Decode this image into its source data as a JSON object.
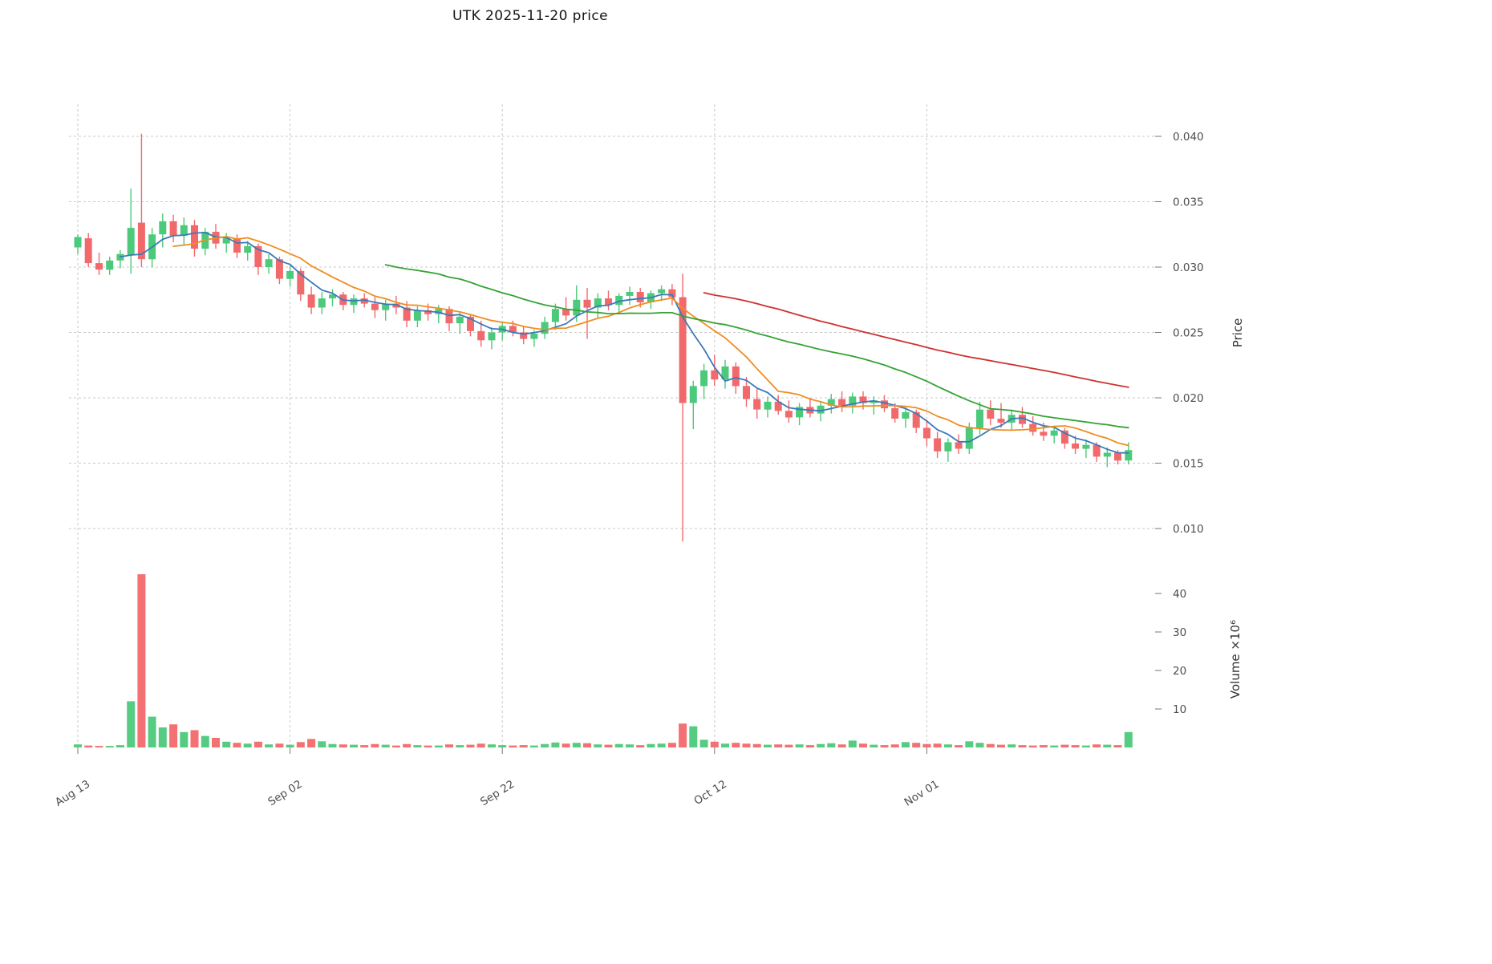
{
  "title": "UTK  2025-11-20  price",
  "chart_data": {
    "type": "candlestick+volume",
    "title": "UTK  2025-11-20  price",
    "ylabel": "Price",
    "ylabel_volume": "Volume  ×10⁶",
    "volume_units": "10^6",
    "grid": true,
    "legend": false,
    "ylim_price": [
      0.007,
      0.0425
    ],
    "ylim_volume": [
      0,
      47
    ],
    "price_ticks": [
      0.01,
      0.015,
      0.02,
      0.025,
      0.03,
      0.035,
      0.04
    ],
    "volume_ticks": [
      10,
      20,
      30,
      40
    ],
    "x_ticks": [
      {
        "index": 0,
        "label": "Aug 13"
      },
      {
        "index": 20,
        "label": "Sep 02"
      },
      {
        "index": 40,
        "label": "Sep 22"
      },
      {
        "index": 60,
        "label": "Oct 12"
      },
      {
        "index": 80,
        "label": "Nov 01"
      }
    ],
    "colors": {
      "up": "#4dc97b",
      "down": "#f2696c",
      "grid": "#c9c9c9",
      "axis_text": "#4d4d4d"
    },
    "moving_averages": [
      {
        "label": "MA5",
        "period": 5,
        "color": "#3b79b8"
      },
      {
        "label": "MA10",
        "period": 10,
        "color": "#ef8d20"
      },
      {
        "label": "MA30",
        "period": 30,
        "color": "#35a335"
      },
      {
        "label": "MA60",
        "period": 60,
        "color": "#d03030"
      }
    ],
    "ohlcv_columns": [
      "date",
      "open",
      "high",
      "low",
      "close",
      "volume_millions"
    ],
    "ohlcv": [
      [
        "2025-08-13",
        0.0315,
        0.0325,
        0.031,
        0.0323,
        0.8
      ],
      [
        "2025-08-14",
        0.0322,
        0.0326,
        0.03,
        0.0303,
        0.5
      ],
      [
        "2025-08-15",
        0.0303,
        0.0311,
        0.0294,
        0.0298,
        0.4
      ],
      [
        "2025-08-16",
        0.0298,
        0.0308,
        0.0294,
        0.0305,
        0.4
      ],
      [
        "2025-08-17",
        0.0305,
        0.0313,
        0.0299,
        0.031,
        0.6
      ],
      [
        "2025-08-18",
        0.0309,
        0.036,
        0.0295,
        0.033,
        12.0
      ],
      [
        "2025-08-19",
        0.0334,
        0.0402,
        0.03,
        0.0306,
        45.0
      ],
      [
        "2025-08-20",
        0.0306,
        0.033,
        0.03,
        0.0325,
        8.0
      ],
      [
        "2025-08-21",
        0.0325,
        0.0341,
        0.0315,
        0.0335,
        5.2
      ],
      [
        "2025-08-22",
        0.0335,
        0.034,
        0.0319,
        0.0324,
        6.0
      ],
      [
        "2025-08-23",
        0.0324,
        0.0338,
        0.0317,
        0.0332,
        4.0
      ],
      [
        "2025-08-24",
        0.0332,
        0.0336,
        0.0308,
        0.0314,
        4.5
      ],
      [
        "2025-08-25",
        0.0314,
        0.033,
        0.0309,
        0.0327,
        3.0
      ],
      [
        "2025-08-26",
        0.0327,
        0.0333,
        0.0314,
        0.0318,
        2.5
      ],
      [
        "2025-08-27",
        0.0318,
        0.0326,
        0.0311,
        0.0322,
        1.5
      ],
      [
        "2025-08-28",
        0.0322,
        0.0325,
        0.0307,
        0.0311,
        1.2
      ],
      [
        "2025-08-29",
        0.0311,
        0.032,
        0.0305,
        0.0316,
        1.0
      ],
      [
        "2025-08-30",
        0.0316,
        0.0318,
        0.0294,
        0.03,
        1.5
      ],
      [
        "2025-08-31",
        0.03,
        0.031,
        0.0295,
        0.0306,
        0.8
      ],
      [
        "2025-09-01",
        0.0306,
        0.0308,
        0.0287,
        0.0291,
        1.0
      ],
      [
        "2025-09-02",
        0.0291,
        0.0301,
        0.0285,
        0.0297,
        0.7
      ],
      [
        "2025-09-03",
        0.0297,
        0.0299,
        0.0274,
        0.0279,
        1.4
      ],
      [
        "2025-09-04",
        0.0279,
        0.0285,
        0.0264,
        0.0269,
        2.2
      ],
      [
        "2025-09-05",
        0.0269,
        0.0281,
        0.0264,
        0.0276,
        1.6
      ],
      [
        "2025-09-06",
        0.0276,
        0.0283,
        0.027,
        0.0279,
        0.9
      ],
      [
        "2025-09-07",
        0.0279,
        0.0281,
        0.0267,
        0.0271,
        0.8
      ],
      [
        "2025-09-08",
        0.0271,
        0.0279,
        0.0265,
        0.0276,
        0.7
      ],
      [
        "2025-09-09",
        0.0276,
        0.028,
        0.0269,
        0.0272,
        0.6
      ],
      [
        "2025-09-10",
        0.0272,
        0.0277,
        0.0261,
        0.0267,
        0.9
      ],
      [
        "2025-09-11",
        0.0267,
        0.0275,
        0.0259,
        0.0272,
        0.7
      ],
      [
        "2025-09-12",
        0.0272,
        0.0278,
        0.0264,
        0.0269,
        0.5
      ],
      [
        "2025-09-13",
        0.0269,
        0.0274,
        0.0254,
        0.0259,
        0.9
      ],
      [
        "2025-09-14",
        0.0259,
        0.027,
        0.0254,
        0.0267,
        0.6
      ],
      [
        "2025-09-15",
        0.0267,
        0.0272,
        0.0259,
        0.0264,
        0.5
      ],
      [
        "2025-09-16",
        0.0264,
        0.0271,
        0.0257,
        0.0268,
        0.5
      ],
      [
        "2025-09-17",
        0.0268,
        0.027,
        0.0251,
        0.0257,
        0.8
      ],
      [
        "2025-09-18",
        0.0257,
        0.0265,
        0.0249,
        0.0262,
        0.6
      ],
      [
        "2025-09-19",
        0.0262,
        0.0264,
        0.0247,
        0.0251,
        0.7
      ],
      [
        "2025-09-20",
        0.0251,
        0.0259,
        0.0239,
        0.0244,
        1.0
      ],
      [
        "2025-09-21",
        0.0244,
        0.0254,
        0.0237,
        0.025,
        0.8
      ],
      [
        "2025-09-22",
        0.025,
        0.0258,
        0.0244,
        0.0255,
        0.6
      ],
      [
        "2025-09-23",
        0.0255,
        0.0259,
        0.0247,
        0.025,
        0.5
      ],
      [
        "2025-09-24",
        0.025,
        0.0255,
        0.0241,
        0.0245,
        0.6
      ],
      [
        "2025-09-25",
        0.0245,
        0.0252,
        0.0239,
        0.0249,
        0.5
      ],
      [
        "2025-09-26",
        0.0249,
        0.0262,
        0.0245,
        0.0258,
        0.9
      ],
      [
        "2025-09-27",
        0.0258,
        0.0272,
        0.0252,
        0.0268,
        1.3
      ],
      [
        "2025-09-28",
        0.0268,
        0.0277,
        0.0259,
        0.0263,
        1.0
      ],
      [
        "2025-09-29",
        0.0263,
        0.0286,
        0.0258,
        0.0275,
        1.2
      ],
      [
        "2025-09-30",
        0.0275,
        0.0284,
        0.0245,
        0.0269,
        1.1
      ],
      [
        "2025-10-01",
        0.0269,
        0.028,
        0.0261,
        0.0276,
        0.8
      ],
      [
        "2025-10-02",
        0.0276,
        0.0282,
        0.0267,
        0.0271,
        0.7
      ],
      [
        "2025-10-03",
        0.0271,
        0.028,
        0.0265,
        0.0278,
        0.9
      ],
      [
        "2025-10-04",
        0.0278,
        0.0285,
        0.0271,
        0.0281,
        0.8
      ],
      [
        "2025-10-05",
        0.0281,
        0.0284,
        0.0269,
        0.0273,
        0.6
      ],
      [
        "2025-10-06",
        0.0273,
        0.0282,
        0.0268,
        0.028,
        0.9
      ],
      [
        "2025-10-07",
        0.028,
        0.0286,
        0.0274,
        0.0283,
        1.0
      ],
      [
        "2025-10-08",
        0.0283,
        0.0287,
        0.0271,
        0.0277,
        1.2
      ],
      [
        "2025-10-09",
        0.0277,
        0.0295,
        0.009,
        0.0196,
        6.2
      ],
      [
        "2025-10-10",
        0.0196,
        0.0213,
        0.0176,
        0.0209,
        5.5
      ],
      [
        "2025-10-11",
        0.0209,
        0.0226,
        0.0199,
        0.0221,
        2.0
      ],
      [
        "2025-10-12",
        0.0221,
        0.0233,
        0.0209,
        0.0214,
        1.5
      ],
      [
        "2025-10-13",
        0.0214,
        0.0229,
        0.0207,
        0.0224,
        1.0
      ],
      [
        "2025-10-14",
        0.0224,
        0.0227,
        0.0203,
        0.0209,
        1.2
      ],
      [
        "2025-10-15",
        0.0209,
        0.0216,
        0.0193,
        0.0199,
        1.0
      ],
      [
        "2025-10-16",
        0.0199,
        0.0207,
        0.0184,
        0.0191,
        0.9
      ],
      [
        "2025-10-17",
        0.0191,
        0.0201,
        0.0185,
        0.0197,
        0.7
      ],
      [
        "2025-10-18",
        0.0197,
        0.0202,
        0.0187,
        0.019,
        0.8
      ],
      [
        "2025-10-19",
        0.019,
        0.0198,
        0.0181,
        0.0185,
        0.7
      ],
      [
        "2025-10-20",
        0.0185,
        0.0196,
        0.0179,
        0.0193,
        0.8
      ],
      [
        "2025-10-21",
        0.0193,
        0.02,
        0.0185,
        0.0188,
        0.6
      ],
      [
        "2025-10-22",
        0.0188,
        0.0197,
        0.0182,
        0.0194,
        0.9
      ],
      [
        "2025-10-23",
        0.0194,
        0.0203,
        0.0188,
        0.0199,
        1.1
      ],
      [
        "2025-10-24",
        0.0199,
        0.0205,
        0.0189,
        0.0194,
        0.8
      ],
      [
        "2025-10-25",
        0.0194,
        0.0204,
        0.0188,
        0.0201,
        1.8
      ],
      [
        "2025-10-26",
        0.0201,
        0.0205,
        0.0191,
        0.0196,
        1.0
      ],
      [
        "2025-10-27",
        0.0196,
        0.0201,
        0.0187,
        0.0198,
        0.7
      ],
      [
        "2025-10-28",
        0.0198,
        0.0202,
        0.0189,
        0.0192,
        0.6
      ],
      [
        "2025-10-29",
        0.0192,
        0.0196,
        0.0181,
        0.0184,
        0.8
      ],
      [
        "2025-10-30",
        0.0184,
        0.0193,
        0.0177,
        0.0189,
        1.4
      ],
      [
        "2025-10-31",
        0.0189,
        0.0191,
        0.0173,
        0.0177,
        1.2
      ],
      [
        "2025-11-01",
        0.0177,
        0.0183,
        0.0163,
        0.0169,
        0.9
      ],
      [
        "2025-11-02",
        0.0169,
        0.0174,
        0.0154,
        0.0159,
        1.0
      ],
      [
        "2025-11-03",
        0.0159,
        0.0169,
        0.0151,
        0.0166,
        0.8
      ],
      [
        "2025-11-04",
        0.0166,
        0.0172,
        0.0157,
        0.0161,
        0.6
      ],
      [
        "2025-11-05",
        0.0161,
        0.0181,
        0.0157,
        0.0177,
        1.6
      ],
      [
        "2025-11-06",
        0.0177,
        0.0197,
        0.0172,
        0.0191,
        1.2
      ],
      [
        "2025-11-07",
        0.0191,
        0.0198,
        0.0179,
        0.0184,
        0.9
      ],
      [
        "2025-11-08",
        0.0184,
        0.0196,
        0.0177,
        0.0181,
        0.7
      ],
      [
        "2025-11-09",
        0.0181,
        0.0191,
        0.0175,
        0.0187,
        0.8
      ],
      [
        "2025-11-10",
        0.0187,
        0.0193,
        0.0177,
        0.018,
        0.6
      ],
      [
        "2025-11-11",
        0.018,
        0.0186,
        0.0171,
        0.0174,
        0.5
      ],
      [
        "2025-11-12",
        0.0174,
        0.0181,
        0.0167,
        0.0171,
        0.6
      ],
      [
        "2025-11-13",
        0.0171,
        0.0178,
        0.0165,
        0.0175,
        0.5
      ],
      [
        "2025-11-14",
        0.0175,
        0.0177,
        0.0161,
        0.0165,
        0.7
      ],
      [
        "2025-11-15",
        0.0165,
        0.0171,
        0.0157,
        0.0161,
        0.6
      ],
      [
        "2025-11-16",
        0.0161,
        0.0168,
        0.0154,
        0.0164,
        0.5
      ],
      [
        "2025-11-17",
        0.0164,
        0.0166,
        0.0151,
        0.0155,
        0.8
      ],
      [
        "2025-11-18",
        0.0155,
        0.0162,
        0.0147,
        0.0158,
        0.7
      ],
      [
        "2025-11-19",
        0.0158,
        0.016,
        0.0149,
        0.0152,
        0.6
      ],
      [
        "2025-11-20",
        0.0152,
        0.0166,
        0.0149,
        0.016,
        4.0
      ]
    ]
  }
}
